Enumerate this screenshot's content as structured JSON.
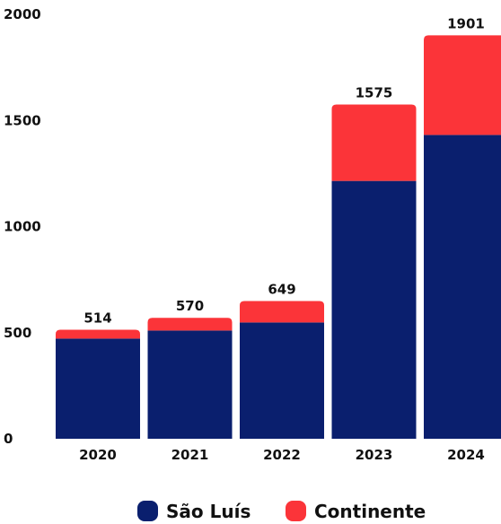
{
  "chart_data": {
    "type": "bar",
    "stacked": true,
    "categories": [
      "2020",
      "2021",
      "2022",
      "2023",
      "2024"
    ],
    "series": [
      {
        "name": "São Luís",
        "values": [
          472,
          510,
          548,
          1215,
          1432
        ],
        "color": "#0a1f6e"
      },
      {
        "name": "Continente",
        "values": [
          42,
          60,
          101,
          360,
          469
        ],
        "color": "#fb3439"
      }
    ],
    "totals": [
      514,
      570,
      649,
      1575,
      1901
    ],
    "total_labels": [
      "514",
      "570",
      "649",
      "1575",
      "1901"
    ],
    "ylim": [
      0,
      2000
    ],
    "yticks": [
      0,
      500,
      1000,
      1500,
      2000
    ],
    "ytick_labels": [
      "0",
      "500",
      "1000",
      "1500",
      "2000"
    ],
    "grid": false,
    "legend_position": "bottom-center"
  }
}
